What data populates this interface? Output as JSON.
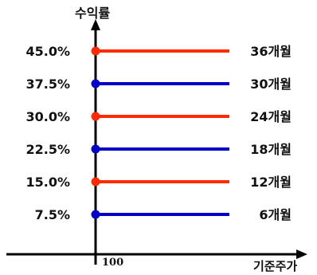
{
  "chart_data": {
    "type": "line",
    "ylabel": "수익률",
    "xlabel": "기준주가",
    "x_tick": "100",
    "series": [
      {
        "y_label": "45.0%",
        "y": 45.0,
        "name": "36개월",
        "color": "#ff2a00"
      },
      {
        "y_label": "37.5%",
        "y": 37.5,
        "name": "30개월",
        "color": "#0000c8"
      },
      {
        "y_label": "30.0%",
        "y": 30.0,
        "name": "24개월",
        "color": "#ff2a00"
      },
      {
        "y_label": "22.5%",
        "y": 22.5,
        "name": "18개월",
        "color": "#0000c8"
      },
      {
        "y_label": "15.0%",
        "y": 15.0,
        "name": "12개월",
        "color": "#ff2a00"
      },
      {
        "y_label": "7.5%",
        "y": 7.5,
        "name": "6개월",
        "color": "#0000c8"
      }
    ]
  }
}
